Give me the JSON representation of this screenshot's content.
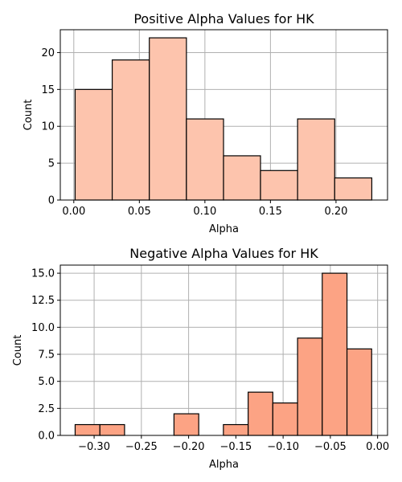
{
  "chart_data": [
    {
      "type": "bar",
      "title": "Positive Alpha Values for HK",
      "xlabel": "Alpha",
      "ylabel": "Count",
      "color": "#fdc4ad",
      "grid": true,
      "xlim": [
        -0.0103,
        0.2393
      ],
      "ylim": [
        0,
        23.1
      ],
      "xticks": [
        0.0,
        0.05,
        0.1,
        0.15,
        0.2
      ],
      "xtick_labels": [
        "0.00",
        "0.05",
        "0.10",
        "0.15",
        "0.20"
      ],
      "yticks": [
        0,
        5,
        10,
        15,
        20
      ],
      "ytick_labels": [
        "0",
        "5",
        "10",
        "15",
        "20"
      ],
      "bins": [
        {
          "x0": 0.001,
          "x1": 0.0293,
          "count": 15
        },
        {
          "x0": 0.0293,
          "x1": 0.0576,
          "count": 19
        },
        {
          "x0": 0.0576,
          "x1": 0.0859,
          "count": 22
        },
        {
          "x0": 0.0859,
          "x1": 0.1142,
          "count": 11
        },
        {
          "x0": 0.1142,
          "x1": 0.1424,
          "count": 6
        },
        {
          "x0": 0.1424,
          "x1": 0.1707,
          "count": 4
        },
        {
          "x0": 0.1707,
          "x1": 0.199,
          "count": 11
        },
        {
          "x0": 0.199,
          "x1": 0.2273,
          "count": 3
        }
      ]
    },
    {
      "type": "bar",
      "title": "Negative Alpha Values for HK",
      "xlabel": "Alpha",
      "ylabel": "Count",
      "color": "#fca384",
      "grid": true,
      "xlim": [
        -0.3358,
        0.0105
      ],
      "ylim": [
        0,
        15.75
      ],
      "xticks": [
        -0.3,
        -0.25,
        -0.2,
        -0.15,
        -0.1,
        -0.05,
        0.0
      ],
      "xtick_labels": [
        "−0.30",
        "−0.25",
        "−0.20",
        "−0.15",
        "−0.10",
        "−0.05",
        "0.00"
      ],
      "yticks": [
        0,
        2.5,
        5,
        7.5,
        10,
        12.5,
        15
      ],
      "ytick_labels": [
        "0.0",
        "2.5",
        "5.0",
        "7.5",
        "10.0",
        "12.5",
        "15.0"
      ],
      "bins": [
        {
          "x0": -0.3201,
          "x1": -0.2939,
          "count": 1
        },
        {
          "x0": -0.2939,
          "x1": -0.2678,
          "count": 1
        },
        {
          "x0": -0.2678,
          "x1": -0.2416,
          "count": 0
        },
        {
          "x0": -0.2416,
          "x1": -0.2155,
          "count": 0
        },
        {
          "x0": -0.2155,
          "x1": -0.1893,
          "count": 2
        },
        {
          "x0": -0.1893,
          "x1": -0.1632,
          "count": 0
        },
        {
          "x0": -0.1632,
          "x1": -0.137,
          "count": 1
        },
        {
          "x0": -0.137,
          "x1": -0.1109,
          "count": 4
        },
        {
          "x0": -0.1109,
          "x1": -0.0847,
          "count": 3
        },
        {
          "x0": -0.0847,
          "x1": -0.0586,
          "count": 9
        },
        {
          "x0": -0.0586,
          "x1": -0.0324,
          "count": 15
        },
        {
          "x0": -0.0324,
          "x1": -0.0063,
          "count": 8
        }
      ]
    }
  ]
}
